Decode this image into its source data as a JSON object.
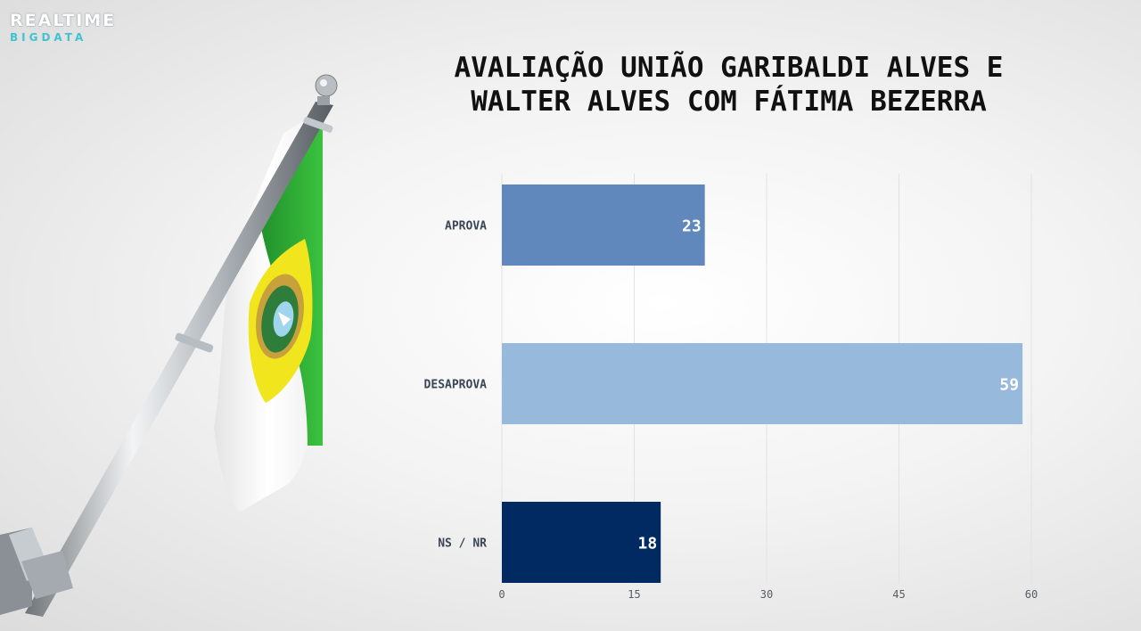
{
  "brand": {
    "line1": "REALTIME",
    "line2": "BIGDATA"
  },
  "title_lines": [
    "AVALIAÇÃO UNIÃO GARIBALDI ALVES E",
    "WALTER ALVES COM FÁTIMA BEZERRA"
  ],
  "chart_data": {
    "type": "bar",
    "orientation": "horizontal",
    "title": "AVALIAÇÃO UNIÃO GARIBALDI ALVES E WALTER ALVES COM FÁTIMA BEZERRA",
    "categories": [
      "APROVA",
      "DESAPROVA",
      "NS / NR"
    ],
    "values": [
      23,
      59,
      18
    ],
    "colors": [
      "#6088bc",
      "#96b9dc",
      "#002a61"
    ],
    "xlim": [
      0,
      60
    ],
    "xticks": [
      0,
      15,
      30,
      45,
      60
    ],
    "grid": true,
    "legend": "none"
  }
}
